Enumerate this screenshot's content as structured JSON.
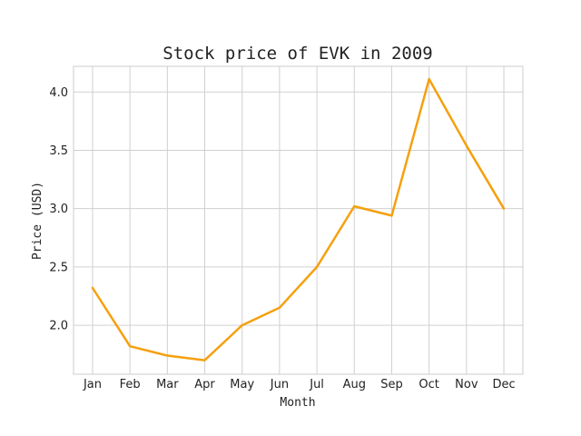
{
  "chart_data": {
    "type": "line",
    "title": "Stock price of EVK in 2009",
    "xlabel": "Month",
    "ylabel": "Price (USD)",
    "categories": [
      "Jan",
      "Feb",
      "Mar",
      "Apr",
      "May",
      "Jun",
      "Jul",
      "Aug",
      "Sep",
      "Oct",
      "Nov",
      "Dec"
    ],
    "series": [
      {
        "values": [
          2.32,
          1.82,
          1.74,
          1.7,
          2.0,
          2.15,
          2.5,
          3.02,
          2.94,
          4.11,
          3.54,
          3.0
        ],
        "color": "#f5a00f"
      }
    ],
    "ylim": [
      1.58,
      4.22
    ],
    "yticks": [
      2.0,
      2.5,
      3.0,
      3.5,
      4.0
    ],
    "ytick_labels": [
      "2.0",
      "2.5",
      "3.0",
      "3.5",
      "4.0"
    ],
    "grid": true,
    "legend": "none"
  }
}
